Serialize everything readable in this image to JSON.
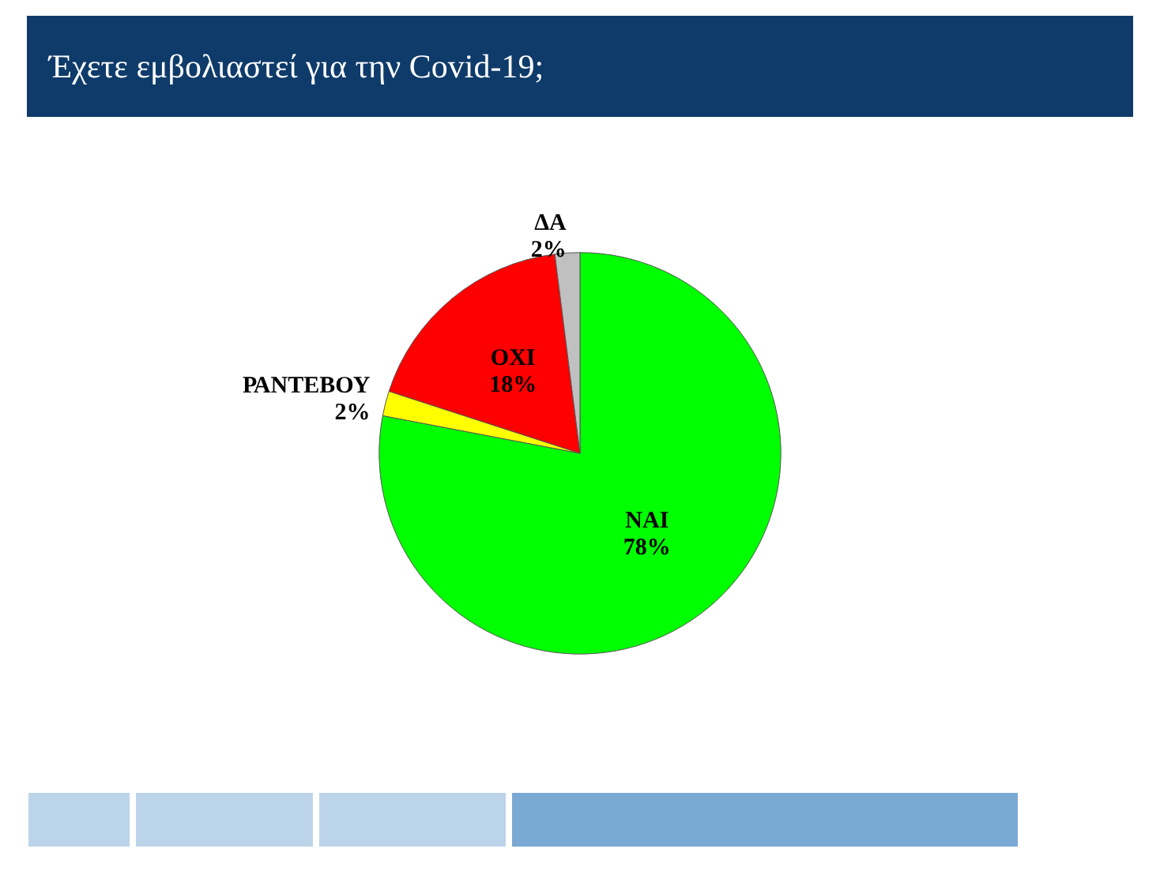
{
  "chart_data": {
    "type": "pie",
    "title": "Έχετε εμβολιαστεί για την Covid-19;",
    "categories": [
      "ΝΑΙ",
      "ΡΑΝΤΕΒΟΥ",
      "ΟΧΙ",
      "ΔΑ"
    ],
    "values": [
      78,
      2,
      18,
      2
    ],
    "colors": [
      "#00ff00",
      "#ffff00",
      "#ff0000",
      "#c0c0c0"
    ],
    "value_labels": [
      "78%",
      "2%",
      "18%",
      "2%"
    ]
  }
}
